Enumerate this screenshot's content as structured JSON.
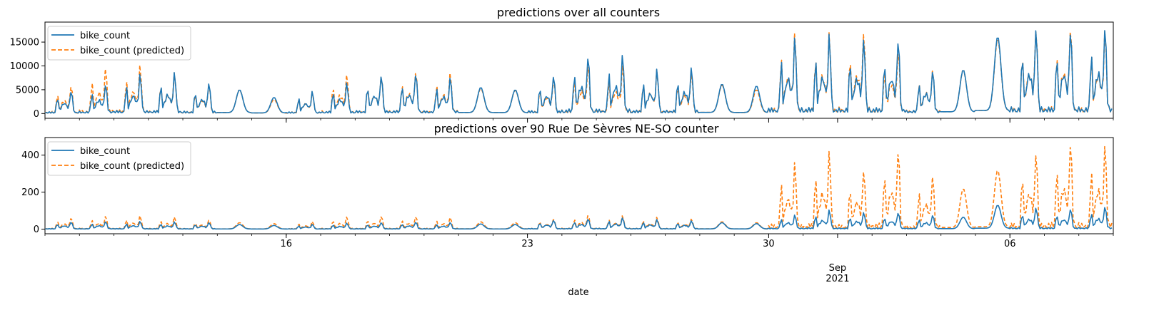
{
  "colors": {
    "actual": "#1f77b4",
    "predicted": "#ff7f0e",
    "axis": "#000000",
    "background": "#ffffff"
  },
  "chart_data": [
    {
      "type": "line",
      "title": "predictions over all counters",
      "xlabel": "",
      "ylabel": "",
      "x_start": "2021-08-09",
      "x_end": "2021-09-09",
      "x_ticks": [
        "16",
        "23",
        "30",
        "Sep",
        "06"
      ],
      "yticks": [
        0,
        5000,
        10000,
        15000
      ],
      "ylim": [
        -1000,
        19200
      ],
      "grid": false,
      "legend_position": "upper-left",
      "series": [
        {
          "name": "bike_count",
          "style": "solid",
          "daily_peaks": [
            4700,
            6000,
            8000,
            8400,
            6400,
            5000,
            3400,
            4500,
            6300,
            8000,
            8400,
            7500,
            5500,
            5000,
            8000,
            12100,
            12200,
            9000,
            9600,
            6200,
            5800,
            15700,
            16100,
            15600,
            15600,
            9000,
            9200,
            16200,
            17800,
            17600,
            18000
          ]
        },
        {
          "name": "bike_count (predicted)",
          "style": "dashed",
          "daily_peaks": [
            5800,
            9400,
            9800,
            8500,
            6000,
            5000,
            3000,
            4400,
            8100,
            8000,
            8800,
            8400,
            5300,
            4900,
            7300,
            10100,
            9900,
            8900,
            8600,
            6000,
            5000,
            16400,
            16700,
            17200,
            13200,
            9100,
            9200,
            15700,
            18100,
            18200,
            17500
          ]
        }
      ]
    },
    {
      "type": "line",
      "title": "predictions over 90 Rue De Sèvres NE-SO counter",
      "xlabel": "date",
      "ylabel": "",
      "x_start": "2021-08-09",
      "x_end": "2021-09-09",
      "x_ticks": [
        "16",
        "23",
        "30",
        "Sep\n2021",
        "06"
      ],
      "yticks": [
        0,
        200,
        400
      ],
      "ylim": [
        -25,
        495
      ],
      "grid": false,
      "legend_position": "upper-left",
      "series": [
        {
          "name": "bike_count",
          "style": "solid",
          "daily_peaks": [
            38,
            40,
            40,
            38,
            35,
            25,
            20,
            25,
            32,
            35,
            38,
            35,
            28,
            25,
            48,
            55,
            60,
            50,
            45,
            35,
            30,
            75,
            100,
            90,
            90,
            75,
            65,
            130,
            115,
            110,
            120
          ]
        },
        {
          "name": "bike_count (predicted)",
          "style": "dashed",
          "daily_peaks": [
            60,
            68,
            70,
            65,
            50,
            35,
            30,
            40,
            65,
            70,
            68,
            62,
            40,
            35,
            55,
            75,
            70,
            62,
            55,
            40,
            35,
            350,
            410,
            320,
            430,
            285,
            220,
            320,
            415,
            470,
            450
          ]
        }
      ]
    }
  ]
}
